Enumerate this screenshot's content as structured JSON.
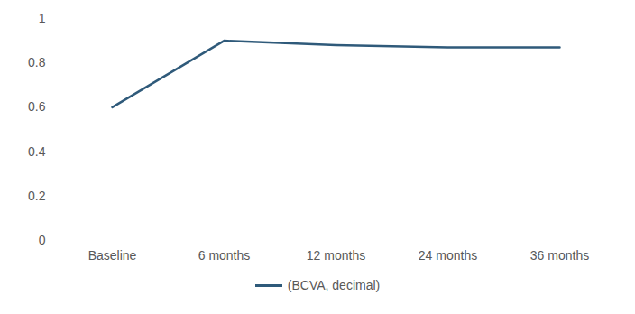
{
  "chart_data": {
    "type": "line",
    "categories": [
      "Baseline",
      "6 months",
      "12 months",
      "24 months",
      "36 months"
    ],
    "series": [
      {
        "name": "(BCVA, decimal)",
        "color": "#2f5a7a",
        "values": [
          0.6,
          0.9,
          0.88,
          0.87,
          0.87
        ]
      }
    ],
    "ylim": [
      0,
      1
    ],
    "yticks": [
      0,
      0.2,
      0.4,
      0.6,
      0.8,
      1
    ],
    "grid": false,
    "legend": "bottom"
  }
}
